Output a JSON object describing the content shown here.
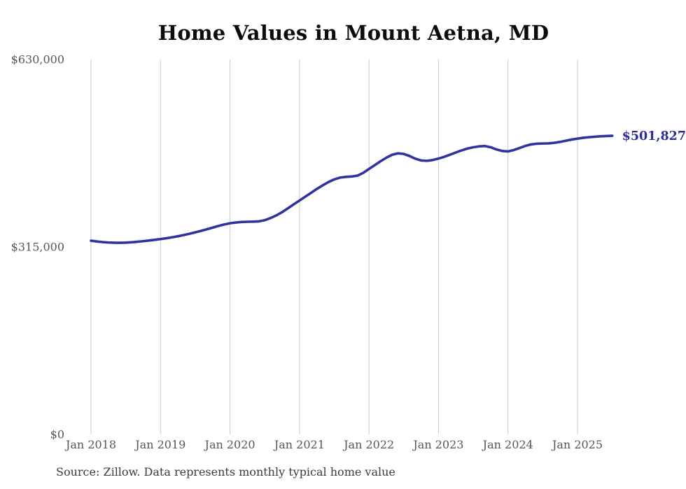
{
  "page": {
    "title": "Home Values in Mount Aetna, MD",
    "source": "Source: Zillow. Data represents monthly typical home value"
  },
  "chart_data": {
    "type": "line",
    "title": "Home Values in Mount Aetna, MD",
    "xlabel": "",
    "ylabel": "",
    "ylim": [
      0,
      630000
    ],
    "grid": "vertical-only",
    "legend": "none",
    "x_tick_labels": [
      "Jan 2018",
      "Jan 2019",
      "Jan 2020",
      "Jan 2021",
      "Jan 2022",
      "Jan 2023",
      "Jan 2024",
      "Jan 2025"
    ],
    "y_ticks": [
      {
        "label": "$0",
        "value": 0
      },
      {
        "label": "$315,000",
        "value": 315000
      },
      {
        "label": "$630,000",
        "value": 630000
      }
    ],
    "end_label": "$501,827",
    "final_value": 501827,
    "line_color": "#32329e",
    "grid_color": "#cbcbcb",
    "tick_label_color": "#565656",
    "end_label_color": "#2c2c9a",
    "series": [
      {
        "name": "Typical home value",
        "start": "2018-01",
        "end": "2025-07",
        "frequency": "monthly",
        "values": [
          325500,
          324200,
          323200,
          322500,
          322100,
          322000,
          322300,
          322900,
          323700,
          324700,
          325800,
          327000,
          328200,
          329600,
          331200,
          333000,
          335000,
          337200,
          339500,
          342000,
          344700,
          347500,
          350300,
          352800,
          354800,
          356100,
          356900,
          357300,
          357500,
          358000,
          360000,
          363500,
          368000,
          373500,
          380000,
          386500,
          393000,
          399500,
          406000,
          412500,
          418500,
          424000,
          428500,
          431500,
          432800,
          433300,
          434800,
          439500,
          446000,
          452500,
          459000,
          465000,
          469800,
          472300,
          471300,
          467800,
          463300,
          460300,
          459700,
          461000,
          463500,
          466500,
          470000,
          473800,
          477300,
          480300,
          482500,
          484000,
          484500,
          482500,
          478800,
          476300,
          475500,
          477800,
          481300,
          484800,
          487300,
          488500,
          488800,
          489000,
          490000,
          491500,
          493500,
          495500,
          497000,
          498400,
          499400,
          500200,
          500900,
          501400,
          501827
        ]
      }
    ]
  }
}
